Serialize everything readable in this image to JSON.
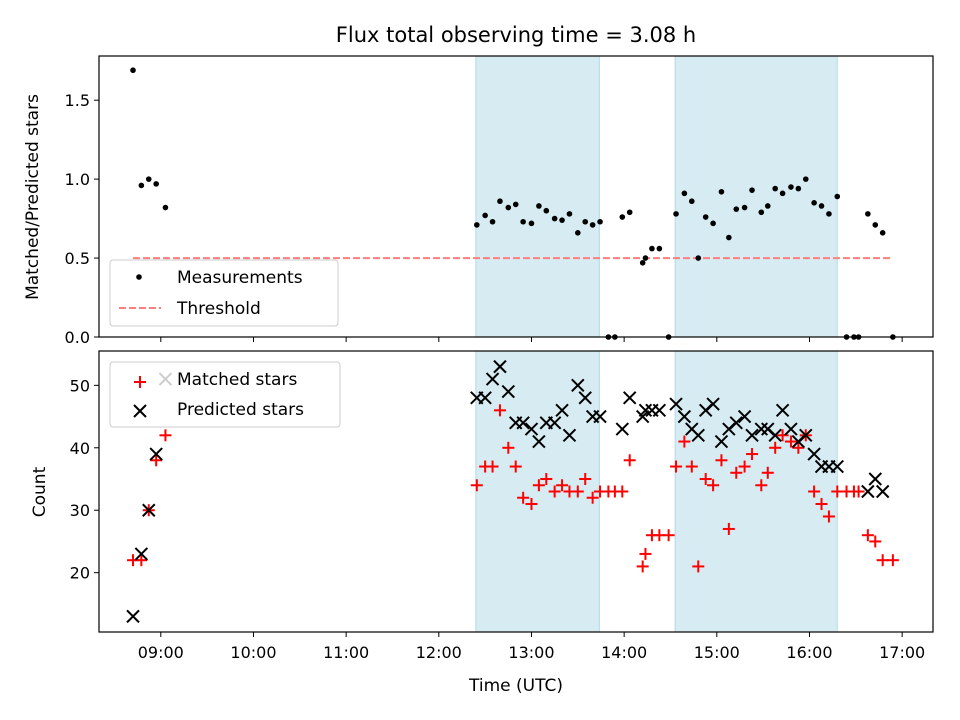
{
  "chart_data": [
    {
      "type": "scatter",
      "title": "Flux total observing time = 3.08 h",
      "xlabel": "",
      "ylabel": "Matched/Predicted stars",
      "xlim": [
        8.333,
        17.333
      ],
      "ylim": [
        0,
        1.78
      ],
      "yticks": [
        0.0,
        0.5,
        1.0,
        1.5
      ],
      "ytick_labels": [
        "0.0",
        "0.5",
        "1.0",
        "1.5"
      ],
      "shaded_intervals": [
        [
          12.4,
          13.733
        ],
        [
          14.55,
          16.3
        ]
      ],
      "shade_color": "#add8e6",
      "threshold": {
        "y": 0.5,
        "x": [
          8.7,
          16.9
        ],
        "color": "#ff7f7f"
      },
      "legend": {
        "placement": "lower-left",
        "entries": [
          "Measurements",
          "Threshold"
        ]
      },
      "series": [
        {
          "name": "Measurements",
          "color": "#000000",
          "marker": "dot",
          "points": [
            [
              8.7,
              1.69
            ],
            [
              8.79,
              0.96
            ],
            [
              8.87,
              1.0
            ],
            [
              8.95,
              0.97
            ],
            [
              9.05,
              0.82
            ],
            [
              12.41,
              0.71
            ],
            [
              12.5,
              0.77
            ],
            [
              12.58,
              0.73
            ],
            [
              12.66,
              0.86
            ],
            [
              12.75,
              0.82
            ],
            [
              12.83,
              0.84
            ],
            [
              12.91,
              0.73
            ],
            [
              13.0,
              0.72
            ],
            [
              13.08,
              0.83
            ],
            [
              13.16,
              0.8
            ],
            [
              13.25,
              0.75
            ],
            [
              13.33,
              0.74
            ],
            [
              13.41,
              0.78
            ],
            [
              13.5,
              0.66
            ],
            [
              13.58,
              0.73
            ],
            [
              13.66,
              0.71
            ],
            [
              13.74,
              0.73
            ],
            [
              13.83,
              0.0
            ],
            [
              13.9,
              0.0
            ],
            [
              13.98,
              0.76
            ],
            [
              14.06,
              0.79
            ],
            [
              14.2,
              0.47
            ],
            [
              14.23,
              0.5
            ],
            [
              14.3,
              0.56
            ],
            [
              14.38,
              0.56
            ],
            [
              14.48,
              0.0
            ],
            [
              14.56,
              0.78
            ],
            [
              14.65,
              0.91
            ],
            [
              14.73,
              0.86
            ],
            [
              14.8,
              0.5
            ],
            [
              14.88,
              0.76
            ],
            [
              14.96,
              0.72
            ],
            [
              15.05,
              0.92
            ],
            [
              15.13,
              0.63
            ],
            [
              15.21,
              0.81
            ],
            [
              15.3,
              0.82
            ],
            [
              15.38,
              0.93
            ],
            [
              15.48,
              0.79
            ],
            [
              15.55,
              0.83
            ],
            [
              15.63,
              0.94
            ],
            [
              15.71,
              0.91
            ],
            [
              15.8,
              0.95
            ],
            [
              15.88,
              0.94
            ],
            [
              15.96,
              1.0
            ],
            [
              16.05,
              0.85
            ],
            [
              16.13,
              0.83
            ],
            [
              16.21,
              0.78
            ],
            [
              16.3,
              0.89
            ],
            [
              16.4,
              0.0
            ],
            [
              16.48,
              0.0
            ],
            [
              16.53,
              0.0
            ],
            [
              16.63,
              0.78
            ],
            [
              16.71,
              0.71
            ],
            [
              16.79,
              0.66
            ],
            [
              16.9,
              0.0
            ]
          ]
        }
      ]
    },
    {
      "type": "scatter",
      "title": "",
      "xlabel": "Time (UTC)",
      "ylabel": "Count",
      "xlim": [
        8.333,
        17.333
      ],
      "ylim": [
        10.5,
        55.5
      ],
      "yticks": [
        20,
        30,
        40,
        50
      ],
      "ytick_labels": [
        "20",
        "30",
        "40",
        "50"
      ],
      "xticks": [
        9,
        10,
        11,
        12,
        13,
        14,
        15,
        16,
        17
      ],
      "xtick_labels": [
        "09:00",
        "10:00",
        "11:00",
        "12:00",
        "13:00",
        "14:00",
        "15:00",
        "16:00",
        "17:00"
      ],
      "shaded_intervals": [
        [
          12.4,
          13.733
        ],
        [
          14.55,
          16.3
        ]
      ],
      "shade_color": "#add8e6",
      "legend": {
        "placement": "upper-left",
        "entries": [
          "Matched stars",
          "Predicted stars"
        ]
      },
      "series": [
        {
          "name": "Matched stars",
          "color": "#ff0000",
          "marker": "plus",
          "points": [
            [
              8.7,
              22
            ],
            [
              8.79,
              22
            ],
            [
              8.87,
              30
            ],
            [
              8.95,
              38
            ],
            [
              9.05,
              42
            ],
            [
              12.41,
              34
            ],
            [
              12.5,
              37
            ],
            [
              12.58,
              37
            ],
            [
              12.66,
              46
            ],
            [
              12.75,
              40
            ],
            [
              12.83,
              37
            ],
            [
              12.91,
              32
            ],
            [
              13.0,
              31
            ],
            [
              13.08,
              34
            ],
            [
              13.16,
              35
            ],
            [
              13.25,
              33
            ],
            [
              13.33,
              34
            ],
            [
              13.41,
              33
            ],
            [
              13.5,
              33
            ],
            [
              13.58,
              35
            ],
            [
              13.66,
              32
            ],
            [
              13.74,
              33
            ],
            [
              13.83,
              33
            ],
            [
              13.9,
              33
            ],
            [
              13.98,
              33
            ],
            [
              14.06,
              38
            ],
            [
              14.2,
              21
            ],
            [
              14.23,
              23
            ],
            [
              14.3,
              26
            ],
            [
              14.38,
              26
            ],
            [
              14.48,
              26
            ],
            [
              14.56,
              37
            ],
            [
              14.65,
              41
            ],
            [
              14.73,
              37
            ],
            [
              14.8,
              21
            ],
            [
              14.88,
              35
            ],
            [
              14.96,
              34
            ],
            [
              15.05,
              38
            ],
            [
              15.13,
              27
            ],
            [
              15.21,
              36
            ],
            [
              15.3,
              37
            ],
            [
              15.38,
              39
            ],
            [
              15.48,
              34
            ],
            [
              15.55,
              36
            ],
            [
              15.63,
              40
            ],
            [
              15.71,
              42
            ],
            [
              15.8,
              41
            ],
            [
              15.88,
              40
            ],
            [
              15.96,
              42
            ],
            [
              16.05,
              33
            ],
            [
              16.13,
              31
            ],
            [
              16.21,
              29
            ],
            [
              16.3,
              33
            ],
            [
              16.4,
              33
            ],
            [
              16.48,
              33
            ],
            [
              16.53,
              33
            ],
            [
              16.63,
              26
            ],
            [
              16.71,
              25
            ],
            [
              16.79,
              22
            ],
            [
              16.9,
              22
            ]
          ]
        },
        {
          "name": "Predicted stars",
          "color": "#000000",
          "marker": "x",
          "points": [
            [
              8.7,
              13
            ],
            [
              8.79,
              23
            ],
            [
              8.87,
              30
            ],
            [
              8.95,
              39
            ],
            [
              9.05,
              51
            ],
            [
              12.41,
              48
            ],
            [
              12.5,
              48
            ],
            [
              12.58,
              51
            ],
            [
              12.66,
              53
            ],
            [
              12.75,
              49
            ],
            [
              12.83,
              44
            ],
            [
              12.91,
              44
            ],
            [
              13.0,
              43
            ],
            [
              13.08,
              41
            ],
            [
              13.16,
              44
            ],
            [
              13.25,
              44
            ],
            [
              13.33,
              46
            ],
            [
              13.41,
              42
            ],
            [
              13.5,
              50
            ],
            [
              13.58,
              48
            ],
            [
              13.66,
              45
            ],
            [
              13.74,
              45
            ],
            [
              13.98,
              43
            ],
            [
              14.06,
              48
            ],
            [
              14.2,
              45
            ],
            [
              14.23,
              46
            ],
            [
              14.3,
              46
            ],
            [
              14.38,
              46
            ],
            [
              14.56,
              47
            ],
            [
              14.65,
              45
            ],
            [
              14.73,
              43
            ],
            [
              14.8,
              42
            ],
            [
              14.88,
              46
            ],
            [
              14.96,
              47
            ],
            [
              15.05,
              41
            ],
            [
              15.13,
              43
            ],
            [
              15.21,
              44
            ],
            [
              15.3,
              45
            ],
            [
              15.38,
              42
            ],
            [
              15.48,
              43
            ],
            [
              15.55,
              43
            ],
            [
              15.63,
              42
            ],
            [
              15.71,
              46
            ],
            [
              15.8,
              43
            ],
            [
              15.88,
              41
            ],
            [
              15.96,
              42
            ],
            [
              16.05,
              39
            ],
            [
              16.13,
              37
            ],
            [
              16.21,
              37
            ],
            [
              16.3,
              37
            ],
            [
              16.63,
              33
            ],
            [
              16.71,
              35
            ],
            [
              16.79,
              33
            ]
          ]
        }
      ]
    }
  ]
}
